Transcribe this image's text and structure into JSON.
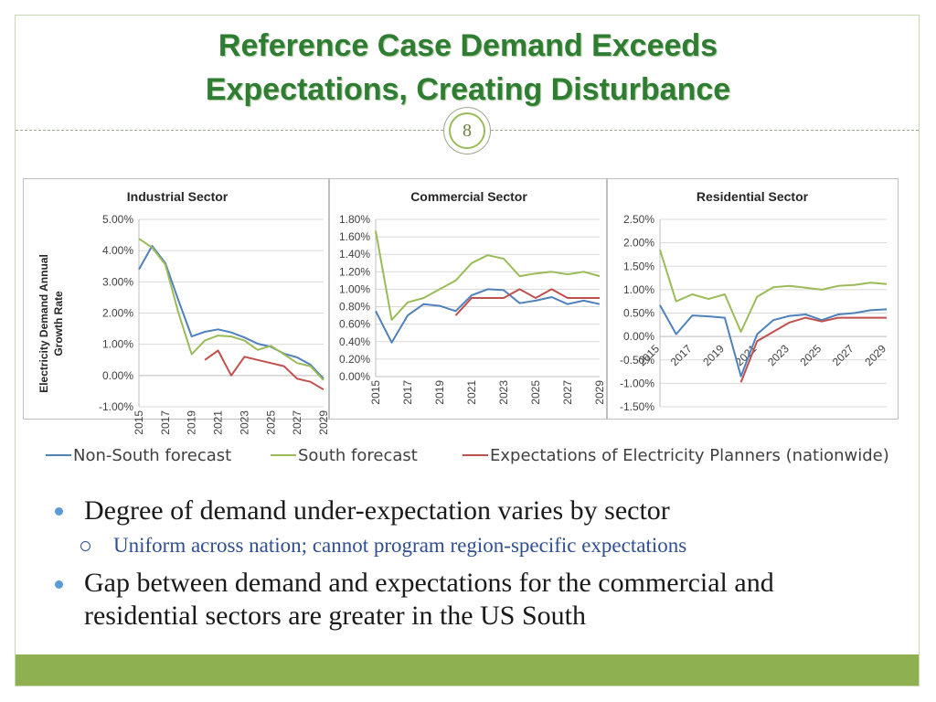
{
  "slide": {
    "title_line1": "Reference Case Demand Exceeds",
    "title_line2": "Expectations, Creating Disturbance",
    "number": "8"
  },
  "legend": {
    "items": [
      {
        "label": "Non-South forecast",
        "color": "#4f81bd"
      },
      {
        "label": "South forecast",
        "color": "#9bbb59"
      },
      {
        "label": "Expectations of Electricity Planners (nationwide)",
        "color": "#c0504d"
      }
    ]
  },
  "bullets": {
    "b1": "Degree of demand under-expectation varies by sector",
    "b1_sub": "Uniform across nation; cannot program region-specific expectations",
    "b2": "Gap between demand and expectations for the commercial and residential sectors are greater in the US South"
  },
  "chart_data": [
    {
      "type": "line",
      "title": "Industrial Sector",
      "ylabel": "Electricity Demand Annual Growth Rate",
      "ylim": [
        -1.0,
        5.0
      ],
      "ytick_step": 1.0,
      "ytick_decimals": 2,
      "x": [
        2015,
        2016,
        2017,
        2018,
        2019,
        2020,
        2021,
        2022,
        2023,
        2024,
        2025,
        2026,
        2027,
        2028,
        2029
      ],
      "xtick_labels": [
        "2015",
        "2017",
        "2019",
        "2021",
        "2023",
        "2025",
        "2027",
        "2029"
      ],
      "series": [
        {
          "name": "Non-South forecast",
          "color": "#4f81bd",
          "x": [
            2015,
            2016,
            2017,
            2018,
            2019,
            2020,
            2021,
            2022,
            2023,
            2024,
            2025,
            2026,
            2027,
            2028,
            2029
          ],
          "values": [
            3.4,
            4.15,
            3.6,
            2.4,
            1.25,
            1.4,
            1.48,
            1.38,
            1.22,
            1.02,
            0.92,
            0.7,
            0.58,
            0.35,
            -0.1
          ]
        },
        {
          "name": "South forecast",
          "color": "#9bbb59",
          "x": [
            2015,
            2016,
            2017,
            2018,
            2019,
            2020,
            2021,
            2022,
            2023,
            2024,
            2025,
            2026,
            2027,
            2028,
            2029
          ],
          "values": [
            4.38,
            4.1,
            3.55,
            2.0,
            0.68,
            1.12,
            1.28,
            1.25,
            1.12,
            0.82,
            0.95,
            0.68,
            0.4,
            0.3,
            -0.15
          ]
        },
        {
          "name": "Expectations of Electricity Planners (nationwide)",
          "color": "#c0504d",
          "x": [
            2020,
            2021,
            2022,
            2023,
            2024,
            2025,
            2026,
            2027,
            2028,
            2029
          ],
          "values": [
            0.5,
            0.8,
            0.0,
            0.6,
            0.5,
            0.4,
            0.3,
            -0.1,
            -0.2,
            -0.45
          ]
        }
      ]
    },
    {
      "type": "line",
      "title": "Commercial Sector",
      "ylabel": "",
      "ylim": [
        0.0,
        1.8
      ],
      "ytick_step": 0.2,
      "ytick_decimals": 2,
      "x": [
        2015,
        2016,
        2017,
        2018,
        2019,
        2020,
        2021,
        2022,
        2023,
        2024,
        2025,
        2026,
        2027,
        2028,
        2029
      ],
      "xtick_labels": [
        "2015",
        "2017",
        "2019",
        "2021",
        "2023",
        "2025",
        "2027",
        "2029"
      ],
      "series": [
        {
          "name": "Non-South forecast",
          "color": "#4f81bd",
          "x": [
            2015,
            2016,
            2017,
            2018,
            2019,
            2020,
            2021,
            2022,
            2023,
            2024,
            2025,
            2026,
            2027,
            2028,
            2029
          ],
          "values": [
            0.75,
            0.39,
            0.7,
            0.83,
            0.81,
            0.75,
            0.93,
            1.0,
            0.99,
            0.84,
            0.87,
            0.91,
            0.83,
            0.87,
            0.83
          ]
        },
        {
          "name": "South forecast",
          "color": "#9bbb59",
          "x": [
            2015,
            2016,
            2017,
            2018,
            2019,
            2020,
            2021,
            2022,
            2023,
            2024,
            2025,
            2026,
            2027,
            2028,
            2029
          ],
          "values": [
            1.67,
            0.65,
            0.85,
            0.9,
            1.0,
            1.1,
            1.3,
            1.39,
            1.35,
            1.15,
            1.18,
            1.2,
            1.17,
            1.2,
            1.15
          ]
        },
        {
          "name": "Expectations of Electricity Planners (nationwide)",
          "color": "#c0504d",
          "x": [
            2020,
            2021,
            2022,
            2023,
            2024,
            2025,
            2026,
            2027,
            2028,
            2029
          ],
          "values": [
            0.7,
            0.9,
            0.9,
            0.9,
            1.0,
            0.9,
            1.0,
            0.9,
            0.9,
            0.9
          ]
        }
      ]
    },
    {
      "type": "line",
      "title": "Residential Sector",
      "ylabel": "",
      "ylim": [
        -1.5,
        2.5
      ],
      "ytick_step": 0.5,
      "ytick_decimals": 2,
      "x": [
        2015,
        2016,
        2017,
        2018,
        2019,
        2020,
        2021,
        2022,
        2023,
        2024,
        2025,
        2026,
        2027,
        2028,
        2029
      ],
      "xtick_labels": [
        "2015",
        "2017",
        "2019",
        "2021",
        "2023",
        "2025",
        "2027",
        "2029"
      ],
      "series": [
        {
          "name": "Non-South forecast",
          "color": "#4f81bd",
          "x": [
            2015,
            2016,
            2017,
            2018,
            2019,
            2020,
            2021,
            2022,
            2023,
            2024,
            2025,
            2026,
            2027,
            2028,
            2029
          ],
          "values": [
            0.67,
            0.05,
            0.45,
            0.43,
            0.4,
            -0.85,
            0.05,
            0.35,
            0.44,
            0.47,
            0.35,
            0.47,
            0.5,
            0.56,
            0.58
          ]
        },
        {
          "name": "South forecast",
          "color": "#9bbb59",
          "x": [
            2015,
            2016,
            2017,
            2018,
            2019,
            2020,
            2021,
            2022,
            2023,
            2024,
            2025,
            2026,
            2027,
            2028,
            2029
          ],
          "values": [
            1.85,
            0.75,
            0.9,
            0.8,
            0.9,
            0.1,
            0.85,
            1.05,
            1.08,
            1.04,
            1.0,
            1.08,
            1.1,
            1.15,
            1.12
          ]
        },
        {
          "name": "Expectations of Electricity Planners (nationwide)",
          "color": "#c0504d",
          "x": [
            2020,
            2021,
            2022,
            2023,
            2024,
            2025,
            2026,
            2027,
            2028,
            2029
          ],
          "values": [
            -0.98,
            -0.1,
            0.1,
            0.3,
            0.4,
            0.32,
            0.4,
            0.4,
            0.4,
            0.4
          ]
        }
      ]
    }
  ]
}
